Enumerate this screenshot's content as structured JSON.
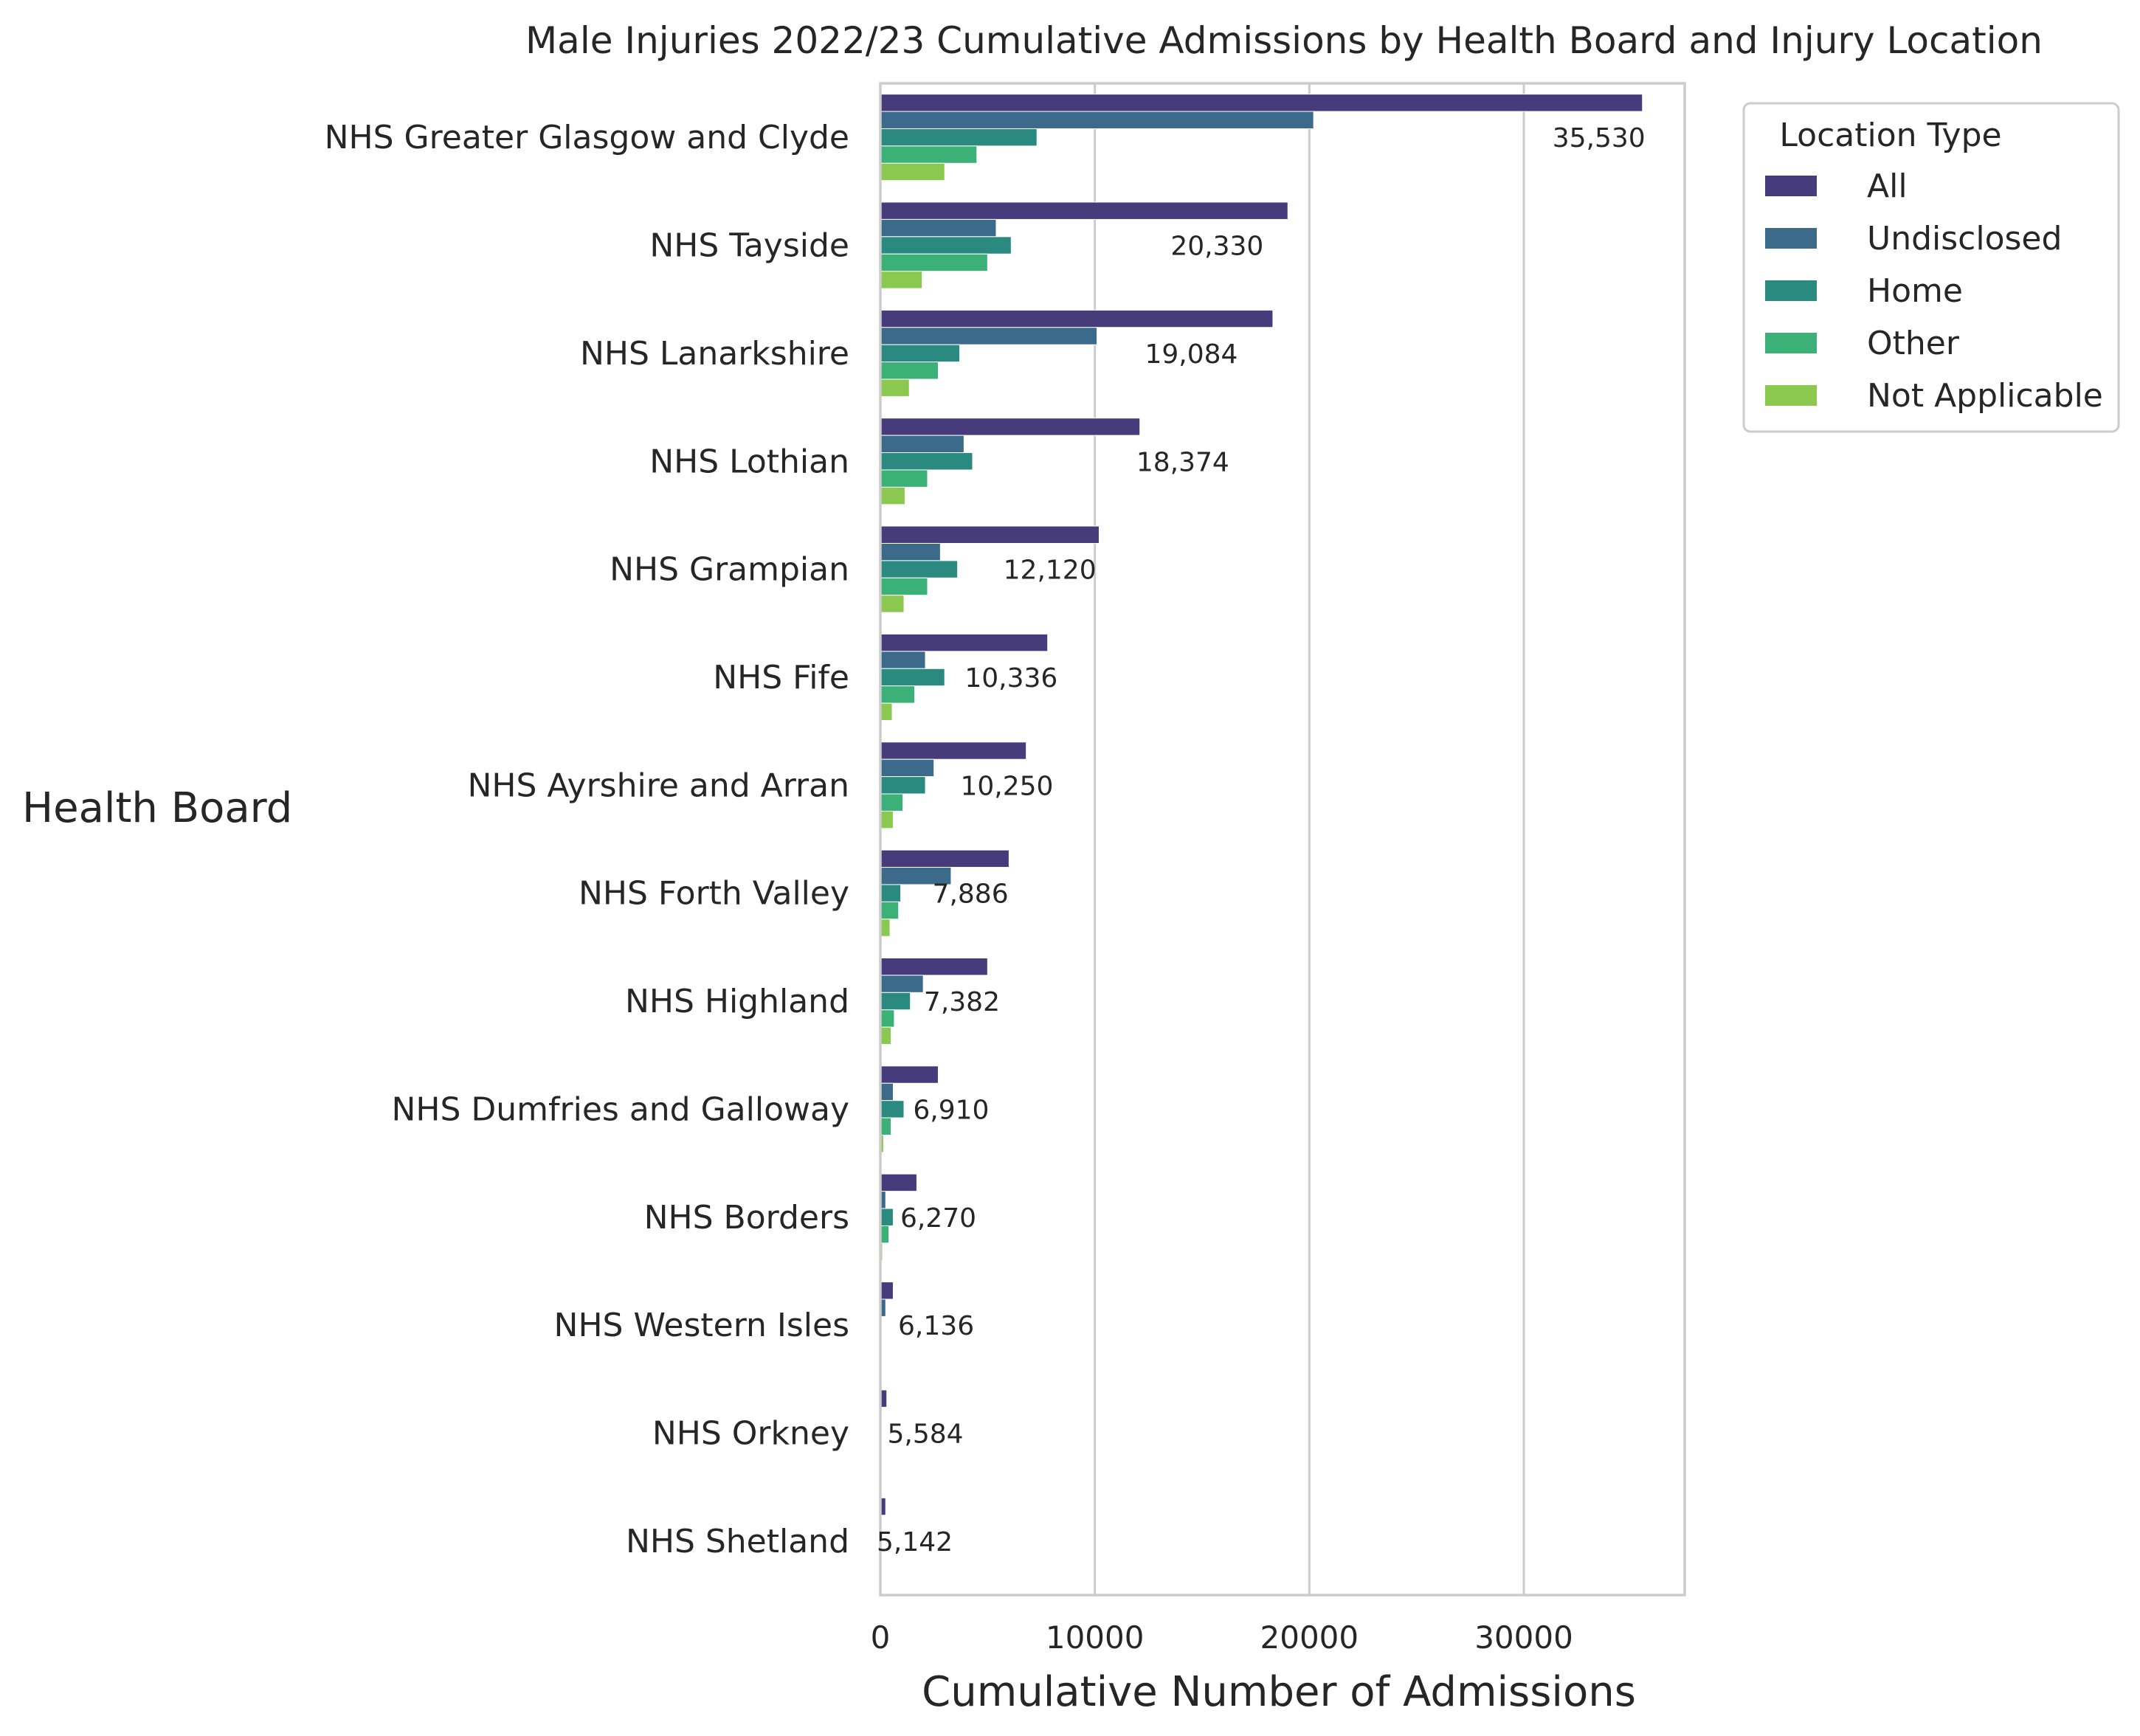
{
  "chart_data": {
    "type": "bar",
    "orientation": "horizontal",
    "title": "Male Injuries 2022/23 Cumulative Admissions by Health Board and Injury Location",
    "xlabel": "Cumulative Number of Admissions",
    "ylabel": "Health Board",
    "xlim": [
      0,
      37500
    ],
    "xticks": [
      0,
      10000,
      20000,
      30000
    ],
    "xtick_labels": [
      "0",
      "10000",
      "20000",
      "30000"
    ],
    "grid": "vertical",
    "legend": {
      "title": "Location Type",
      "placement": "outside-top-right"
    },
    "categories": [
      "NHS Greater Glasgow and Clyde",
      "NHS Tayside",
      "NHS Lanarkshire",
      "NHS Lothian",
      "NHS Grampian",
      "NHS Fife",
      "NHS Ayrshire and Arran",
      "NHS Forth Valley",
      "NHS Highland",
      "NHS Dumfries and Galloway",
      "NHS Borders",
      "NHS Western Isles",
      "NHS Orkney",
      "NHS Shetland"
    ],
    "series": [
      {
        "name": "All",
        "color": "#473c7b",
        "values": [
          35530,
          19000,
          18300,
          12100,
          10200,
          7800,
          6800,
          6000,
          5000,
          2700,
          1700,
          600,
          300,
          250
        ]
      },
      {
        "name": "Undisclosed",
        "color": "#3b6a8b",
        "values": [
          20200,
          5400,
          10100,
          3900,
          2800,
          2100,
          2500,
          3300,
          2000,
          600,
          250,
          250,
          0,
          0
        ]
      },
      {
        "name": "Home",
        "color": "#2a8a80",
        "values": [
          7300,
          6100,
          3700,
          4300,
          3600,
          3000,
          2100,
          950,
          1400,
          1100,
          600,
          0,
          0,
          0
        ]
      },
      {
        "name": "Other",
        "color": "#3bb177",
        "values": [
          4500,
          5000,
          2700,
          2200,
          2200,
          1600,
          1050,
          850,
          650,
          500,
          400,
          0,
          0,
          0
        ]
      },
      {
        "name": "Not Applicable",
        "color": "#8ac850",
        "values": [
          3000,
          1950,
          1350,
          1150,
          1100,
          550,
          600,
          450,
          500,
          150,
          100,
          0,
          0,
          0
        ]
      }
    ],
    "annotations": [
      "35,530",
      "20,330",
      "19,084",
      "18,374",
      "12,120",
      "10,336",
      "10,250",
      "7,886",
      "7,382",
      "6,910",
      "6,270",
      "6,136",
      "5,584",
      "5,142"
    ],
    "annotation_positions": [
      33500,
      15700,
      14500,
      14100,
      7900,
      6100,
      5900,
      4200,
      3800,
      3300,
      2700,
      2600,
      2100,
      1600
    ]
  }
}
